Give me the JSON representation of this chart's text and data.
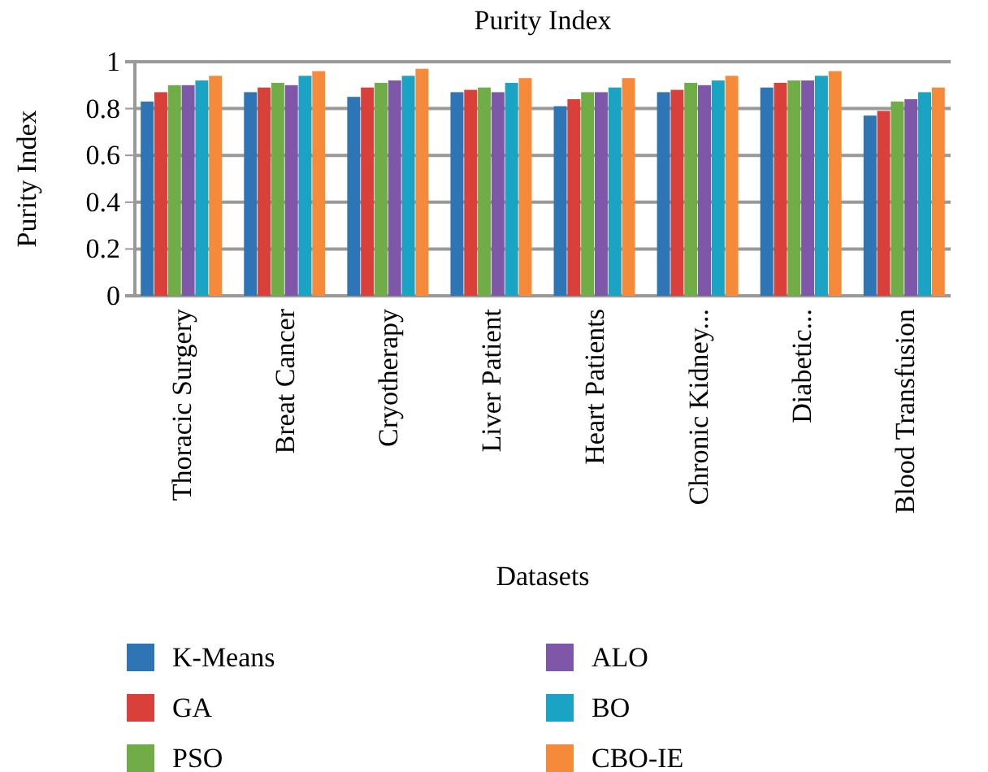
{
  "chart_data": {
    "type": "bar",
    "title": "Purity Index",
    "xlabel": "Datasets",
    "ylabel": "Purity Index",
    "categories": [
      "Thoracic Surgery",
      "Breat Cancer",
      "Cryotherapy",
      "Liver Patient",
      "Heart Patients",
      "Chronic Kidney...",
      "Diabetic...",
      "Blood Transfusion"
    ],
    "series": [
      {
        "name": "K-Means",
        "color": "#2e75b6",
        "values": [
          0.83,
          0.87,
          0.85,
          0.87,
          0.81,
          0.87,
          0.89,
          0.77
        ]
      },
      {
        "name": "GA",
        "color": "#d9403a",
        "values": [
          0.87,
          0.89,
          0.89,
          0.88,
          0.84,
          0.88,
          0.91,
          0.79
        ]
      },
      {
        "name": "PSO",
        "color": "#70ad47",
        "values": [
          0.9,
          0.91,
          0.91,
          0.89,
          0.87,
          0.91,
          0.92,
          0.83
        ]
      },
      {
        "name": "ALO",
        "color": "#7e57a8",
        "values": [
          0.9,
          0.9,
          0.92,
          0.87,
          0.87,
          0.9,
          0.92,
          0.84
        ]
      },
      {
        "name": "BO",
        "color": "#1aa3c2",
        "values": [
          0.92,
          0.94,
          0.94,
          0.91,
          0.89,
          0.92,
          0.94,
          0.87
        ]
      },
      {
        "name": "CBO-IE",
        "color": "#f58a3a",
        "values": [
          0.94,
          0.96,
          0.97,
          0.93,
          0.93,
          0.94,
          0.96,
          0.89
        ]
      }
    ],
    "ylim": [
      0,
      1
    ],
    "yticks": [
      0,
      0.2,
      0.4,
      0.6,
      0.8,
      1
    ],
    "grid": "y",
    "legend": "bottom"
  }
}
